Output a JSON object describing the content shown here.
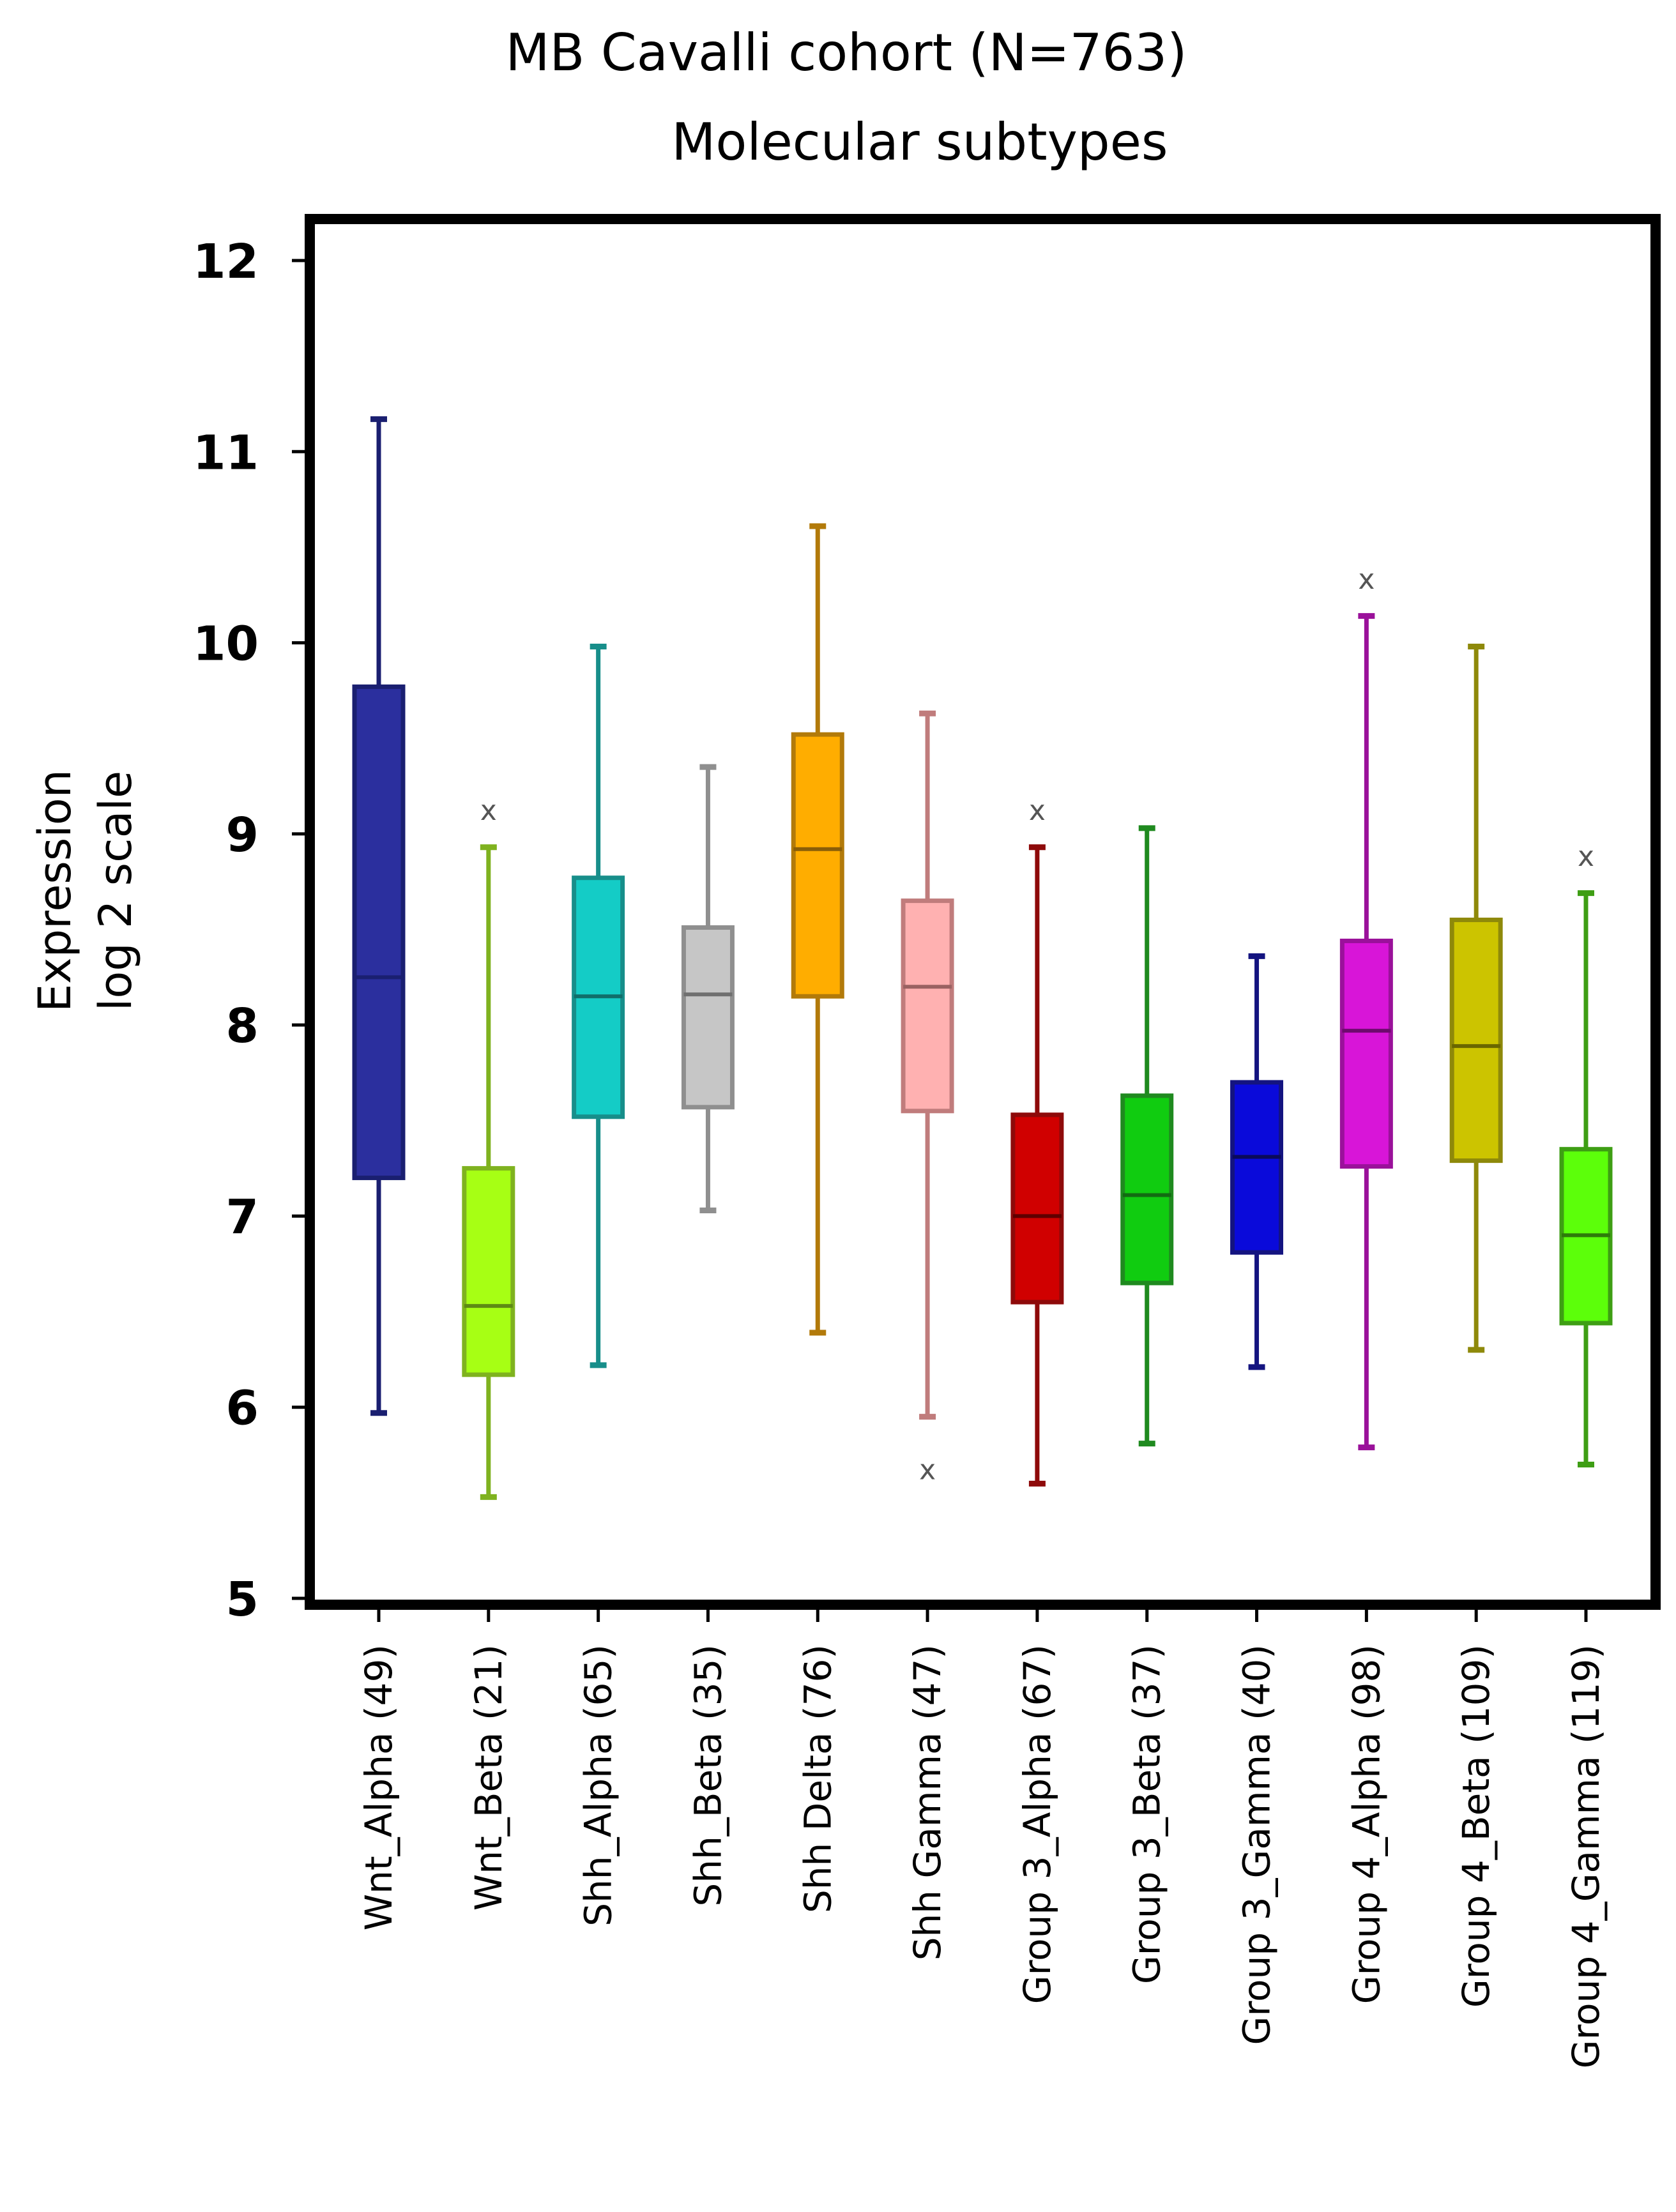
{
  "chart_data": {
    "type": "boxplot",
    "title": [
      "MB Cavalli cohort  (N=763)",
      "Molecular  subtypes"
    ],
    "ylabel": [
      "Expression",
      "log 2 scale"
    ],
    "xlabel": "",
    "ylim": [
      5,
      12
    ],
    "yticks": [
      5,
      6,
      7,
      8,
      9,
      10,
      11,
      12
    ],
    "grid": false,
    "outlier_symbol": "x",
    "groups": [
      {
        "label": "Wnt_Alpha  (49)",
        "color": "#2B2F9E",
        "edge": "#1A1F70",
        "median_color": "#1A1F70",
        "min": 5.97,
        "q1": 7.2,
        "median": 8.25,
        "q3": 9.77,
        "max": 11.17,
        "outliers": []
      },
      {
        "label": "Wnt_Beta  (21)",
        "color": "#A7FF14",
        "edge": "#7FB21F",
        "median_color": "#5E8A14",
        "min": 5.53,
        "q1": 6.17,
        "median": 6.53,
        "q3": 7.25,
        "max": 8.93,
        "outliers": [
          9.12
        ]
      },
      {
        "label": "Shh_Alpha  (65)",
        "color": "#14CCC6",
        "edge": "#178E8A",
        "median_color": "#106E6A",
        "min": 6.22,
        "q1": 7.52,
        "median": 8.15,
        "q3": 8.77,
        "max": 9.98,
        "outliers": []
      },
      {
        "label": "Shh_Beta  (35)",
        "color": "#C6C6C6",
        "edge": "#8F8F8F",
        "median_color": "#6F6F6F",
        "min": 7.03,
        "q1": 7.57,
        "median": 8.16,
        "q3": 8.51,
        "max": 9.35,
        "outliers": []
      },
      {
        "label": "Shh Delta (76)",
        "color": "#FFAD00",
        "edge": "#B27A0A",
        "median_color": "#8A5E08",
        "min": 6.39,
        "q1": 8.15,
        "median": 8.92,
        "q3": 9.52,
        "max": 10.61,
        "outliers": []
      },
      {
        "label": "Shh Gamma  (47)",
        "color": "#FFB1B1",
        "edge": "#C07C7C",
        "median_color": "#9A6262",
        "min": 5.95,
        "q1": 7.55,
        "median": 8.2,
        "q3": 8.65,
        "max": 9.63,
        "outliers": [
          5.67
        ]
      },
      {
        "label": "Group 3_Alpha  (67)",
        "color": "#D00000",
        "edge": "#8E0A0A",
        "median_color": "#5E0000",
        "min": 5.6,
        "q1": 6.55,
        "median": 7.0,
        "q3": 7.53,
        "max": 8.93,
        "outliers": [
          9.12
        ]
      },
      {
        "label": "Group 3_Beta  (37)",
        "color": "#10CC10",
        "edge": "#1F8A1F",
        "median_color": "#126B12",
        "min": 5.81,
        "q1": 6.65,
        "median": 7.11,
        "q3": 7.63,
        "max": 9.03,
        "outliers": []
      },
      {
        "label": "Group 3_Gamma  (40)",
        "color": "#0A0ADA",
        "edge": "#141480",
        "median_color": "#0A0A5A",
        "min": 6.21,
        "q1": 6.81,
        "median": 7.31,
        "q3": 7.7,
        "max": 8.36,
        "outliers": []
      },
      {
        "label": "Group 4_Alpha  (98)",
        "color": "#D815D8",
        "edge": "#9A119A",
        "median_color": "#6E0A6E",
        "min": 5.79,
        "q1": 7.26,
        "median": 7.97,
        "q3": 8.44,
        "max": 10.14,
        "outliers": [
          10.33
        ]
      },
      {
        "label": "Group 4_Beta  (109)",
        "color": "#CCC400",
        "edge": "#8E890A",
        "median_color": "#6A6600",
        "min": 6.3,
        "q1": 7.29,
        "median": 7.89,
        "q3": 8.55,
        "max": 9.98,
        "outliers": []
      },
      {
        "label": "Group 4_Gamma  (119)",
        "color": "#5CFF0A",
        "edge": "#3E9E14",
        "median_color": "#2E7A0A",
        "min": 5.7,
        "q1": 6.44,
        "median": 6.9,
        "q3": 7.35,
        "max": 8.69,
        "outliers": [
          8.88
        ]
      }
    ]
  }
}
